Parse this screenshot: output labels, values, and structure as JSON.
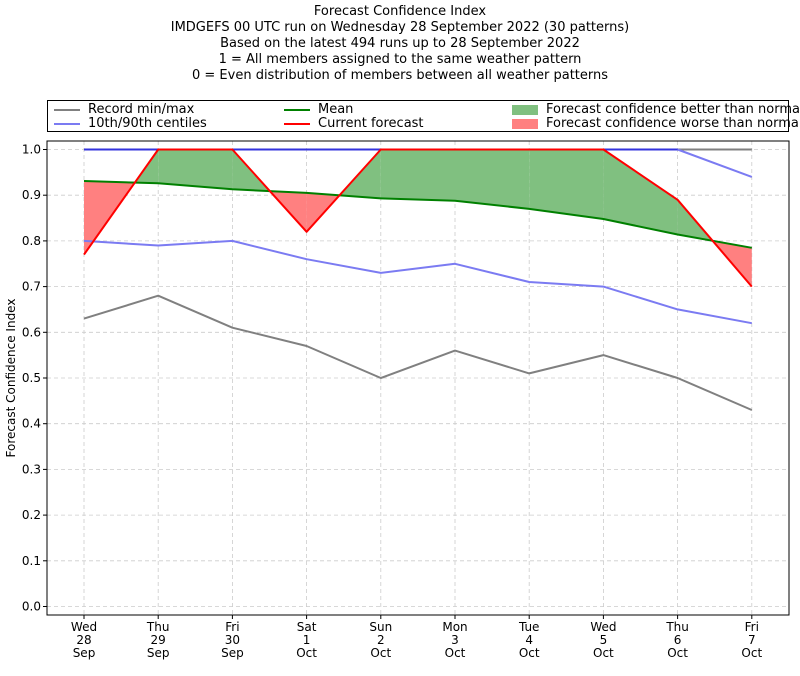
{
  "title_lines": [
    "Forecast Confidence Index",
    "IMDGEFS 00 UTC run on Wednesday 28 September 2022 (30 patterns)",
    "Based on the latest 494 runs up to 28 September 2022",
    "1 = All members assigned to the same weather pattern",
    "0 = Even distribution of members between all weather patterns"
  ],
  "legend": {
    "record": "Record min/max",
    "centiles": "10th/90th centiles",
    "mean": "Mean",
    "current": "Current forecast",
    "better": "Forecast confidence better than normal",
    "worse": "Forecast confidence worse than normal"
  },
  "colors": {
    "record": "#808080",
    "centiles": "#7b7bf2",
    "record_max": "#3333dd",
    "mean": "#008000",
    "current": "#ff0000",
    "better": "#80c080",
    "worse": "#ff8080"
  },
  "chart_data": {
    "type": "line",
    "ylabel": "Forecast Confidence Index",
    "ylim": [
      0,
      1.0
    ],
    "yticks": [
      "0.0",
      "0.1",
      "0.2",
      "0.3",
      "0.4",
      "0.5",
      "0.6",
      "0.7",
      "0.8",
      "0.9",
      "1.0"
    ],
    "grid": true,
    "categories": [
      [
        "Wed",
        "28",
        "Sep"
      ],
      [
        "Thu",
        "29",
        "Sep"
      ],
      [
        "Fri",
        "30",
        "Sep"
      ],
      [
        "Sat",
        "1",
        "Oct"
      ],
      [
        "Sun",
        "2",
        "Oct"
      ],
      [
        "Mon",
        "3",
        "Oct"
      ],
      [
        "Tue",
        "4",
        "Oct"
      ],
      [
        "Wed",
        "5",
        "Oct"
      ],
      [
        "Thu",
        "6",
        "Oct"
      ],
      [
        "Fri",
        "7",
        "Oct"
      ]
    ],
    "series": [
      {
        "name": "Record max",
        "values": [
          1.0,
          1.0,
          1.0,
          1.0,
          1.0,
          1.0,
          1.0,
          1.0,
          1.0,
          1.0
        ]
      },
      {
        "name": "Record min",
        "values": [
          0.63,
          0.68,
          0.61,
          0.57,
          0.5,
          0.56,
          0.51,
          0.55,
          0.5,
          0.43
        ]
      },
      {
        "name": "90th centile",
        "values": [
          1.0,
          1.0,
          1.0,
          1.0,
          1.0,
          1.0,
          1.0,
          1.0,
          1.0,
          0.94
        ]
      },
      {
        "name": "10th centile",
        "values": [
          0.8,
          0.79,
          0.8,
          0.76,
          0.73,
          0.75,
          0.71,
          0.7,
          0.65,
          0.62
        ]
      },
      {
        "name": "Mean",
        "values": [
          0.931,
          0.926,
          0.913,
          0.905,
          0.893,
          0.888,
          0.87,
          0.848,
          0.814,
          0.785
        ]
      },
      {
        "name": "Current forecast",
        "values": [
          0.77,
          1.0,
          1.0,
          0.82,
          1.0,
          1.0,
          1.0,
          1.0,
          0.89,
          0.7
        ]
      }
    ]
  }
}
